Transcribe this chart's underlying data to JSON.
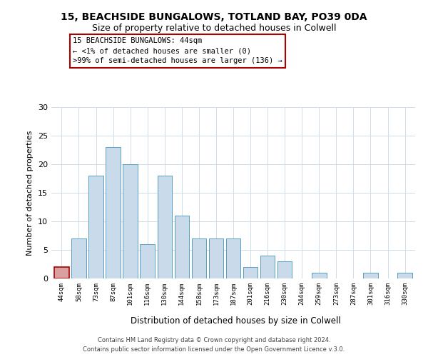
{
  "title_line1": "15, BEACHSIDE BUNGALOWS, TOTLAND BAY, PO39 0DA",
  "title_line2": "Size of property relative to detached houses in Colwell",
  "xlabel": "Distribution of detached houses by size in Colwell",
  "ylabel": "Number of detached properties",
  "bar_color": "#c9daea",
  "bar_edge_color": "#5a9ec0",
  "categories": [
    "44sqm",
    "58sqm",
    "73sqm",
    "87sqm",
    "101sqm",
    "116sqm",
    "130sqm",
    "144sqm",
    "158sqm",
    "173sqm",
    "187sqm",
    "201sqm",
    "216sqm",
    "230sqm",
    "244sqm",
    "259sqm",
    "273sqm",
    "287sqm",
    "301sqm",
    "316sqm",
    "330sqm"
  ],
  "values": [
    2,
    7,
    18,
    23,
    20,
    6,
    18,
    11,
    7,
    7,
    7,
    2,
    4,
    3,
    0,
    1,
    0,
    0,
    1,
    0,
    1
  ],
  "ylim": [
    0,
    30
  ],
  "yticks": [
    0,
    5,
    10,
    15,
    20,
    25,
    30
  ],
  "annotation_line1": "15 BEACHSIDE BUNGALOWS: 44sqm",
  "annotation_line2": "← <1% of detached houses are smaller (0)",
  "annotation_line3": ">99% of semi-detached houses are larger (136) →",
  "annotation_box_color": "#aa0000",
  "highlight_bar_index": 0,
  "highlight_bar_color": "#d8a0a0",
  "highlight_bar_edge_color": "#aa0000",
  "footer_line1": "Contains HM Land Registry data © Crown copyright and database right 2024.",
  "footer_line2": "Contains public sector information licensed under the Open Government Licence v.3.0.",
  "background_color": "#ffffff",
  "grid_color": "#d0dce8"
}
